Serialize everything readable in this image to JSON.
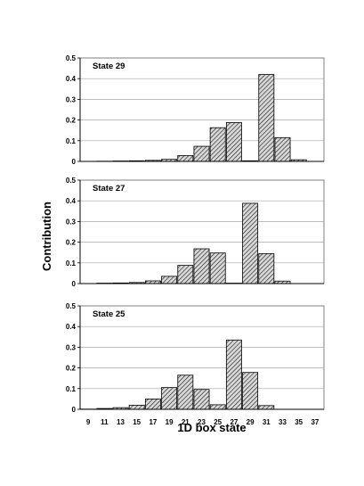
{
  "chart_data": {
    "type": "bar",
    "xlabel": "1D box state",
    "ylabel": "Contribution",
    "ylim": [
      0,
      0.5
    ],
    "yticks": [
      "0",
      "0.1",
      "0.2",
      "0.3",
      "0.4",
      "0.5"
    ],
    "xtick_labels": [
      "9",
      "11",
      "13",
      "15",
      "17",
      "19",
      "21",
      "23",
      "25",
      "27",
      "29",
      "31",
      "33",
      "35",
      "37"
    ],
    "grid": "horizontal",
    "bar_style": "hatched",
    "panels": [
      {
        "title": "State  29",
        "categories": [
          9,
          11,
          13,
          15,
          17,
          19,
          21,
          23,
          25,
          27,
          29,
          31,
          33,
          35
        ],
        "values": [
          0.0,
          0.001,
          0.002,
          0.003,
          0.005,
          0.01,
          0.028,
          0.073,
          0.163,
          0.188,
          0.003,
          0.42,
          0.115,
          0.008
        ]
      },
      {
        "title": "State  27",
        "categories": [
          9,
          11,
          13,
          15,
          17,
          19,
          21,
          23,
          25,
          27,
          29,
          31,
          33,
          35
        ],
        "values": [
          0.0,
          0.002,
          0.003,
          0.005,
          0.013,
          0.035,
          0.088,
          0.168,
          0.148,
          0.002,
          0.388,
          0.145,
          0.012,
          0.0
        ]
      },
      {
        "title": "State  25",
        "categories": [
          9,
          11,
          13,
          15,
          17,
          19,
          21,
          23,
          25,
          27,
          29,
          31,
          33,
          35
        ],
        "values": [
          0.001,
          0.004,
          0.008,
          0.02,
          0.05,
          0.105,
          0.165,
          0.096,
          0.022,
          0.335,
          0.178,
          0.018,
          0.0,
          0.0
        ]
      }
    ]
  }
}
